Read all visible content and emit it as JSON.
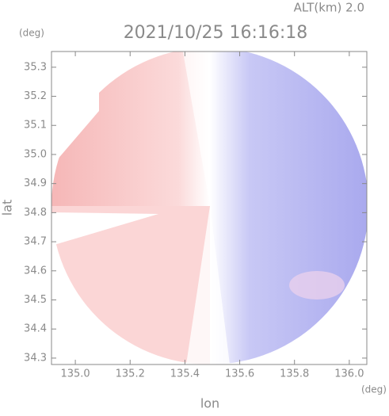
{
  "chart_data": {
    "type": "radar-map",
    "title": "2021/10/25 16:16:18",
    "subtitle": "ALT(km) 2.0",
    "x_label": "lon",
    "y_label": "lat",
    "x_unit": "(deg)",
    "y_unit": "(deg)",
    "xlim": [
      134.913,
      136.064
    ],
    "ylim": [
      34.278,
      35.354
    ],
    "xticks": [
      {
        "value": 135.0,
        "label": "135.0"
      },
      135.2,
      135.4,
      135.6,
      135.8,
      {
        "value": 136.0,
        "label": "136.0"
      }
    ],
    "yticks": [
      34.3,
      34.4,
      34.5,
      34.6,
      34.7,
      34.8,
      34.9,
      {
        "value": 35.0,
        "label": "35.0"
      },
      35.1,
      35.2,
      35.3
    ]
  }
}
